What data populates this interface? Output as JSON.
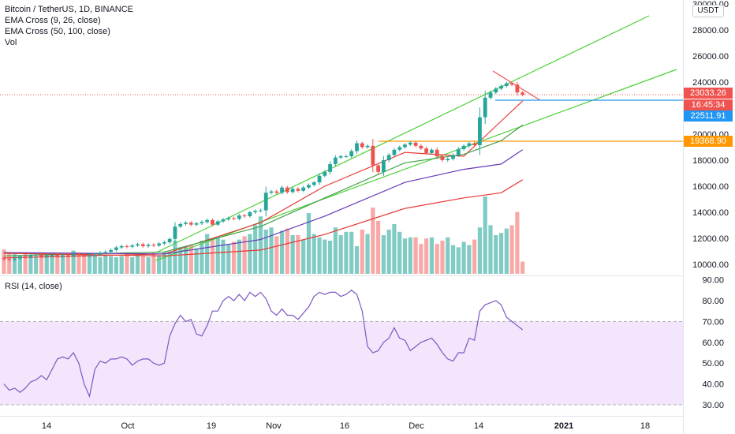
{
  "legend": {
    "title": "Bitcoin / TetherUS, 1D, BINANCE",
    "ema1": "EMA Cross (9, 26, close)",
    "ema2": "EMA Cross (50, 100, close)",
    "vol": "Vol"
  },
  "rsi_label": "RSI (14, close)",
  "currency": "USDT",
  "price_tags": {
    "last": "23033.26",
    "countdown": "16:45:34",
    "level1": "22511.91",
    "level2": "19368.90"
  },
  "colors": {
    "up": "#26a69a",
    "down": "#ef5350",
    "vol_up": "#80cbc4",
    "vol_down": "#f7a9a7",
    "ema9": "#e53935",
    "ema26": "#43a047",
    "ema50": "#673ab7",
    "ema100": "#e53935",
    "trend": "#4cd137",
    "hline": "#2196f3",
    "orange": "#ff9800",
    "rsi": "#7e57c2",
    "rsi_band": "#f3e5fb"
  },
  "chart_data": [
    {
      "type": "candlestick",
      "title": "Bitcoin / TetherUS, 1D, BINANCE",
      "y_ticks": [
        "10000.00",
        "12000.00",
        "14000.00",
        "16000.00",
        "18000.00",
        "20000.00",
        "22000.00",
        "24000.00",
        "26000.00",
        "28000.00",
        "30000.00"
      ],
      "x_ticks": [
        "14",
        "Oct",
        "19",
        "Nov",
        "16",
        "Dec",
        "14",
        "2021",
        "18"
      ],
      "ylim": [
        9000,
        30000
      ],
      "close": [
        10400,
        10350,
        10450,
        10600,
        10550,
        10700,
        10750,
        10600,
        10650,
        10700,
        10600,
        10700,
        10650,
        10800,
        10750,
        10680,
        10700,
        10750,
        10900,
        10950,
        11100,
        11300,
        11400,
        11350,
        11450,
        11550,
        11400,
        11500,
        11450,
        11600,
        11700,
        11950,
        12900,
        13100,
        13200,
        13050,
        13150,
        13250,
        13400,
        13050,
        13300,
        13450,
        13550,
        13500,
        13750,
        13700,
        14000,
        14100,
        14150,
        15500,
        15600,
        15500,
        15900,
        15550,
        15800,
        15650,
        15900,
        16100,
        16300,
        16800,
        17100,
        17700,
        18200,
        18300,
        18300,
        18700,
        19300,
        19000,
        19100,
        17600,
        17100,
        18000,
        18400,
        18800,
        19000,
        19200,
        19350,
        19100,
        18900,
        18550,
        18800,
        18300,
        18000,
        18100,
        18400,
        18850,
        19100,
        19300,
        19150,
        21300,
        22800,
        23200,
        23500,
        23700,
        23900,
        23800,
        23200,
        23033
      ],
      "volume": [
        2.2,
        1.9,
        1.8,
        1.7,
        1.8,
        1.5,
        1.6,
        1.9,
        1.7,
        1.9,
        1.8,
        1.6,
        1.7,
        2.1,
        1.9,
        1.7,
        1.8,
        1.6,
        1.5,
        1.7,
        1.6,
        1.5,
        1.6,
        1.9,
        1.5,
        1.7,
        1.6,
        1.5,
        1.9,
        1.7,
        2.0,
        2.0,
        3.0,
        2.4,
        2.5,
        2.6,
        2.3,
        3.0,
        3.6,
        3.2,
        3.3,
        3.1,
        2.7,
        2.9,
        3.1,
        3.4,
        3.6,
        4.4,
        5.2,
        4.0,
        4.2,
        3.4,
        3.9,
        4.1,
        3.5,
        3.5,
        3.1,
        5.5,
        3.6,
        3.3,
        3.1,
        3.0,
        4.2,
        3.5,
        3.8,
        3.8,
        2.5,
        4.0,
        3.6,
        6.0,
        4.8,
        3.5,
        4.0,
        4.5,
        3.8,
        3.2,
        3.3,
        3.3,
        2.7,
        3.2,
        3.3,
        2.7,
        3.0,
        3.3,
        2.6,
        2.4,
        2.9,
        2.6,
        3.1,
        4.2,
        7.0,
        4.4,
        3.5,
        3.7,
        4.1,
        4.4,
        5.6,
        1.1
      ],
      "series": [
        {
          "name": "EMA 9",
          "values": [
            [
              0,
              10500
            ],
            [
              30,
              10800
            ],
            [
              48,
              13200
            ],
            [
              60,
              16000
            ],
            [
              75,
              18600
            ],
            [
              86,
              18300
            ],
            [
              93,
              21000
            ],
            [
              97,
              22550
            ]
          ]
        },
        {
          "name": "EMA 26",
          "values": [
            [
              0,
              10650
            ],
            [
              30,
              10950
            ],
            [
              48,
              12900
            ],
            [
              60,
              15100
            ],
            [
              75,
              17800
            ],
            [
              86,
              18450
            ],
            [
              93,
              19500
            ],
            [
              97,
              20700
            ]
          ]
        },
        {
          "name": "EMA 50",
          "values": [
            [
              0,
              10900
            ],
            [
              30,
              10800
            ],
            [
              48,
              11900
            ],
            [
              60,
              13700
            ],
            [
              75,
              16300
            ],
            [
              86,
              17300
            ],
            [
              93,
              17700
            ],
            [
              97,
              18800
            ]
          ]
        },
        {
          "name": "EMA 100",
          "values": [
            [
              0,
              10850
            ],
            [
              30,
              10650
            ],
            [
              48,
              11100
            ],
            [
              60,
              12300
            ],
            [
              75,
              14300
            ],
            [
              86,
              15100
            ],
            [
              93,
              15500
            ],
            [
              97,
              16500
            ]
          ]
        }
      ]
    },
    {
      "type": "line",
      "title": "RSI (14, close)",
      "y_ticks": [
        "30.00",
        "40.00",
        "50.00",
        "60.00",
        "70.00",
        "80.00",
        "90.00"
      ],
      "ylim": [
        27,
        92
      ],
      "values": [
        40,
        37,
        38,
        36,
        38,
        41,
        42,
        44,
        42,
        47,
        52,
        53,
        52,
        55,
        50,
        40,
        34,
        47,
        51,
        50,
        52,
        52,
        53,
        52,
        49,
        51,
        52,
        52,
        50,
        49,
        50,
        63,
        69,
        73,
        70,
        71,
        64,
        63,
        68,
        75,
        75,
        80,
        82,
        80,
        83,
        80,
        84,
        82,
        84,
        81,
        75,
        73,
        76,
        73,
        73,
        71,
        74,
        77,
        82,
        84,
        83,
        84,
        84,
        82,
        83,
        85,
        83,
        75,
        58,
        55,
        56,
        60,
        62,
        67,
        62,
        61,
        56,
        58,
        60,
        61,
        62,
        59,
        55,
        52,
        51,
        55,
        55,
        62,
        61,
        75,
        78,
        79,
        80,
        78,
        72,
        70,
        68,
        66
      ],
      "levels": [
        30,
        70
      ]
    }
  ]
}
